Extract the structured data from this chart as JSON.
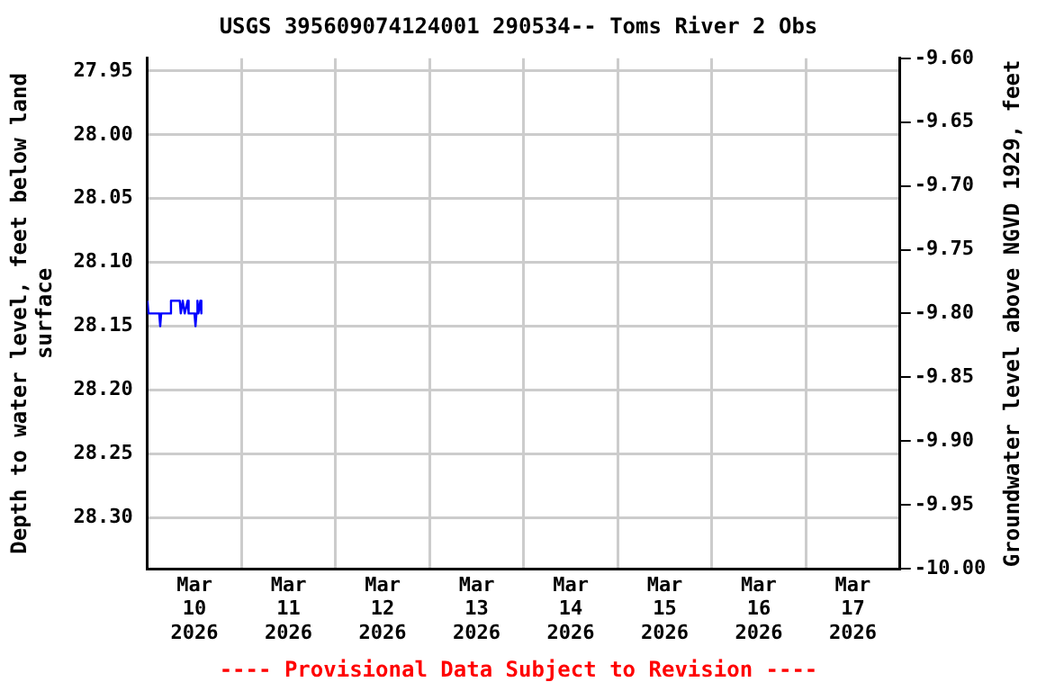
{
  "chart_data": {
    "type": "line",
    "title": "USGS 395609074124001 290534-- Toms River 2 Obs",
    "ylabel": "Depth to water level, feet below land surface",
    "y2label": "Groundwater level above NGVD 1929, feet",
    "annotations": [
      "---- Provisional Data Subject to Revision ----"
    ],
    "series": [
      {
        "color": "#0000ff",
        "x": [
          "2026-03-10T00:00",
          "2026-03-10T00:15",
          "2026-03-10T03:00",
          "2026-03-10T03:15",
          "2026-03-10T03:30",
          "2026-03-10T05:45",
          "2026-03-10T06:00",
          "2026-03-10T08:15",
          "2026-03-10T08:30",
          "2026-03-10T09:00",
          "2026-03-10T09:30",
          "2026-03-10T10:15",
          "2026-03-10T10:30",
          "2026-03-10T12:00",
          "2026-03-10T12:15",
          "2026-03-10T12:30",
          "2026-03-10T12:45",
          "2026-03-10T13:00",
          "2026-03-10T13:30",
          "2026-03-10T13:45"
        ],
        "values": [
          28.13,
          28.14,
          28.14,
          28.15,
          28.14,
          28.14,
          28.13,
          28.13,
          28.14,
          28.13,
          28.14,
          28.13,
          28.14,
          28.14,
          28.15,
          28.14,
          28.13,
          28.14,
          28.13,
          28.14
        ]
      }
    ],
    "xlim": [
      "2026-03-10T00:00",
      "2026-03-18T00:00"
    ],
    "xticks": [
      {
        "value": "2026-03-10T12:00",
        "label": "Mar 10 2026"
      },
      {
        "value": "2026-03-11T00:00",
        "label": null
      },
      {
        "value": "2026-03-11T12:00",
        "label": "Mar 11 2026"
      },
      {
        "value": "2026-03-12T00:00",
        "label": null
      },
      {
        "value": "2026-03-12T12:00",
        "label": "Mar 12 2026"
      },
      {
        "value": "2026-03-13T00:00",
        "label": null
      },
      {
        "value": "2026-03-13T12:00",
        "label": "Mar 13 2026"
      },
      {
        "value": "2026-03-14T00:00",
        "label": null
      },
      {
        "value": "2026-03-14T12:00",
        "label": "Mar 14 2026"
      },
      {
        "value": "2026-03-15T00:00",
        "label": null
      },
      {
        "value": "2026-03-15T12:00",
        "label": "Mar 15 2026"
      },
      {
        "value": "2026-03-16T00:00",
        "label": null
      },
      {
        "value": "2026-03-16T12:00",
        "label": "Mar 16 2026"
      },
      {
        "value": "2026-03-17T00:00",
        "label": null
      },
      {
        "value": "2026-03-17T12:00",
        "label": "Mar 17 2026"
      }
    ],
    "ylim": [
      28.34,
      27.94
    ],
    "yticks": [
      {
        "value": 27.95,
        "label": "27.95"
      },
      {
        "value": 28.0,
        "label": "28.00"
      },
      {
        "value": 28.05,
        "label": "28.05"
      },
      {
        "value": 28.1,
        "label": "28.10"
      },
      {
        "value": 28.15,
        "label": "28.15"
      },
      {
        "value": 28.2,
        "label": "28.20"
      },
      {
        "value": 28.25,
        "label": "28.25"
      },
      {
        "value": 28.3,
        "label": "28.30"
      }
    ],
    "y2lim": [
      -10.0,
      -9.6
    ],
    "y2ticks": [
      {
        "value": -9.6,
        "label": "-9.60"
      },
      {
        "value": -9.65,
        "label": "-9.65"
      },
      {
        "value": -9.7,
        "label": "-9.70"
      },
      {
        "value": -9.75,
        "label": "-9.75"
      },
      {
        "value": -9.8,
        "label": "-9.80"
      },
      {
        "value": -9.85,
        "label": "-9.85"
      },
      {
        "value": -9.9,
        "label": "-9.90"
      },
      {
        "value": -9.95,
        "label": "-9.95"
      },
      {
        "value": -10.0,
        "label": "-10.00"
      }
    ],
    "grid": true,
    "legend": false,
    "marker": "none",
    "line_style": "solid"
  }
}
